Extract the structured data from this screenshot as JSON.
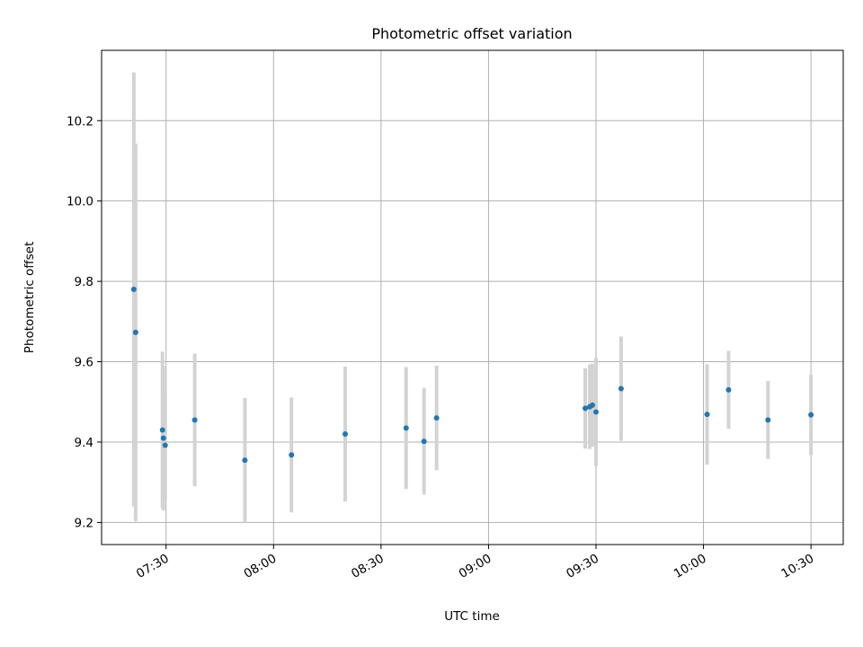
{
  "chart_data": {
    "type": "scatter",
    "title": "Photometric offset variation",
    "xlabel": "UTC time",
    "ylabel": "Photometric offset",
    "x_unit": "minutes",
    "xlim": [
      "07:12",
      "10:39"
    ],
    "ylim": [
      9.145,
      10.375
    ],
    "grid": true,
    "x_ticks": [
      {
        "value": "07:30",
        "label": "07:30"
      },
      {
        "value": "08:00",
        "label": "08:00"
      },
      {
        "value": "08:30",
        "label": "08:30"
      },
      {
        "value": "09:00",
        "label": "09:00"
      },
      {
        "value": "09:30",
        "label": "09:30"
      },
      {
        "value": "10:00",
        "label": "10:00"
      },
      {
        "value": "10:30",
        "label": "10:30"
      }
    ],
    "y_ticks": [
      {
        "value": 9.2,
        "label": "9.2"
      },
      {
        "value": 9.4,
        "label": "9.4"
      },
      {
        "value": 9.6,
        "label": "9.6"
      },
      {
        "value": 9.8,
        "label": "9.8"
      },
      {
        "value": 10.0,
        "label": "10.0"
      },
      {
        "value": 10.2,
        "label": "10.2"
      }
    ],
    "points": [
      {
        "x": "07:21",
        "y": 9.78,
        "err": 0.54
      },
      {
        "x": "07:21:30",
        "y": 9.673,
        "err": 0.47
      },
      {
        "x": "07:29",
        "y": 9.43,
        "err": 0.195
      },
      {
        "x": "07:29:15",
        "y": 9.41,
        "err": 0.18
      },
      {
        "x": "07:29:45",
        "y": 9.392,
        "err": 0.135
      },
      {
        "x": "07:38",
        "y": 9.455,
        "err": 0.165
      },
      {
        "x": "07:52",
        "y": 9.355,
        "err": 0.155
      },
      {
        "x": "08:05",
        "y": 9.368,
        "err": 0.143
      },
      {
        "x": "08:20",
        "y": 9.42,
        "err": 0.168
      },
      {
        "x": "08:37",
        "y": 9.435,
        "err": 0.152
      },
      {
        "x": "08:42",
        "y": 9.402,
        "err": 0.133
      },
      {
        "x": "08:45:30",
        "y": 9.46,
        "err": 0.13
      },
      {
        "x": "09:27",
        "y": 9.484,
        "err": 0.1
      },
      {
        "x": "09:28:15",
        "y": 9.488,
        "err": 0.105
      },
      {
        "x": "09:29",
        "y": 9.492,
        "err": 0.103
      },
      {
        "x": "09:30",
        "y": 9.475,
        "err": 0.135
      },
      {
        "x": "09:37",
        "y": 9.533,
        "err": 0.13
      },
      {
        "x": "10:01",
        "y": 9.469,
        "err": 0.125
      },
      {
        "x": "10:07",
        "y": 9.53,
        "err": 0.097
      },
      {
        "x": "10:18",
        "y": 9.455,
        "err": 0.097
      },
      {
        "x": "10:30",
        "y": 9.468,
        "err": 0.1
      }
    ]
  }
}
